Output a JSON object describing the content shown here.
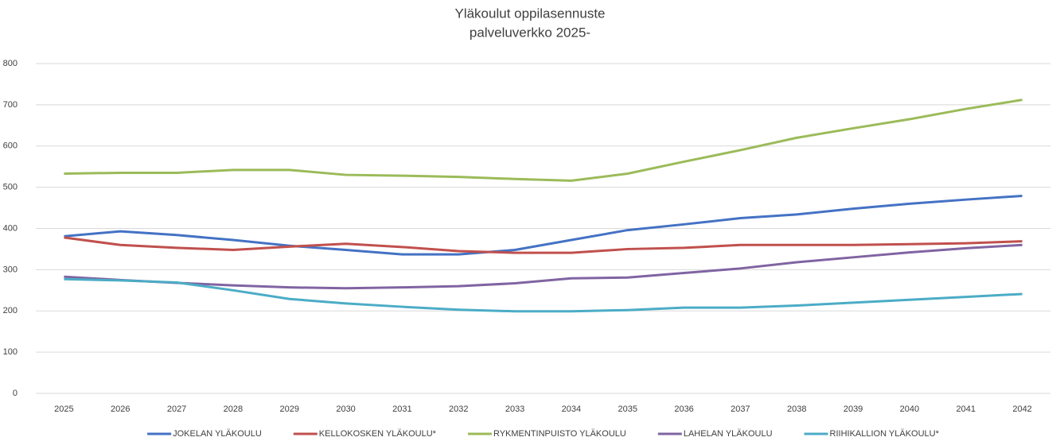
{
  "chart_data": {
    "type": "line",
    "title": "Yläkoulut oppilasennuste",
    "subtitle": "palveluverkko 2025-",
    "categories": [
      "2025",
      "2026",
      "2027",
      "2028",
      "2029",
      "2030",
      "2031",
      "2032",
      "2033",
      "2034",
      "2035",
      "2036",
      "2037",
      "2038",
      "2039",
      "2040",
      "2041",
      "2042"
    ],
    "series": [
      {
        "name": "JOKELAN YLÄKOULU",
        "color": "#4472c4",
        "values": [
          381,
          393,
          384,
          372,
          358,
          348,
          337,
          337,
          348,
          372,
          396,
          410,
          425,
          434,
          448,
          460,
          470,
          479
        ]
      },
      {
        "name": "KELLOKOSKEN YLÄKOULU*",
        "color": "#c0504d",
        "values": [
          378,
          360,
          353,
          348,
          356,
          363,
          355,
          345,
          341,
          341,
          350,
          353,
          360,
          360,
          360,
          362,
          364,
          369
        ]
      },
      {
        "name": "RYKMENTINPUISTO YLÄKOULU",
        "color": "#9bbb59",
        "values": [
          533,
          535,
          535,
          542,
          542,
          530,
          528,
          525,
          520,
          516,
          533,
          562,
          590,
          620,
          643,
          665,
          690,
          712
        ]
      },
      {
        "name": "LAHELAN YLÄKOULU",
        "color": "#8064a2",
        "values": [
          283,
          275,
          268,
          262,
          257,
          255,
          257,
          260,
          267,
          279,
          281,
          292,
          303,
          318,
          330,
          342,
          352,
          360
        ]
      },
      {
        "name": "RIIHIKALLION YLÄKOULU*",
        "color": "#4bacc6",
        "values": [
          277,
          274,
          269,
          250,
          229,
          218,
          210,
          203,
          199,
          199,
          202,
          208,
          208,
          213,
          220,
          227,
          234,
          241
        ]
      }
    ],
    "ylim": [
      0,
      800
    ],
    "yticks": [
      0,
      100,
      200,
      300,
      400,
      500,
      600,
      700,
      800
    ],
    "grid": true,
    "legend": "bottom"
  }
}
